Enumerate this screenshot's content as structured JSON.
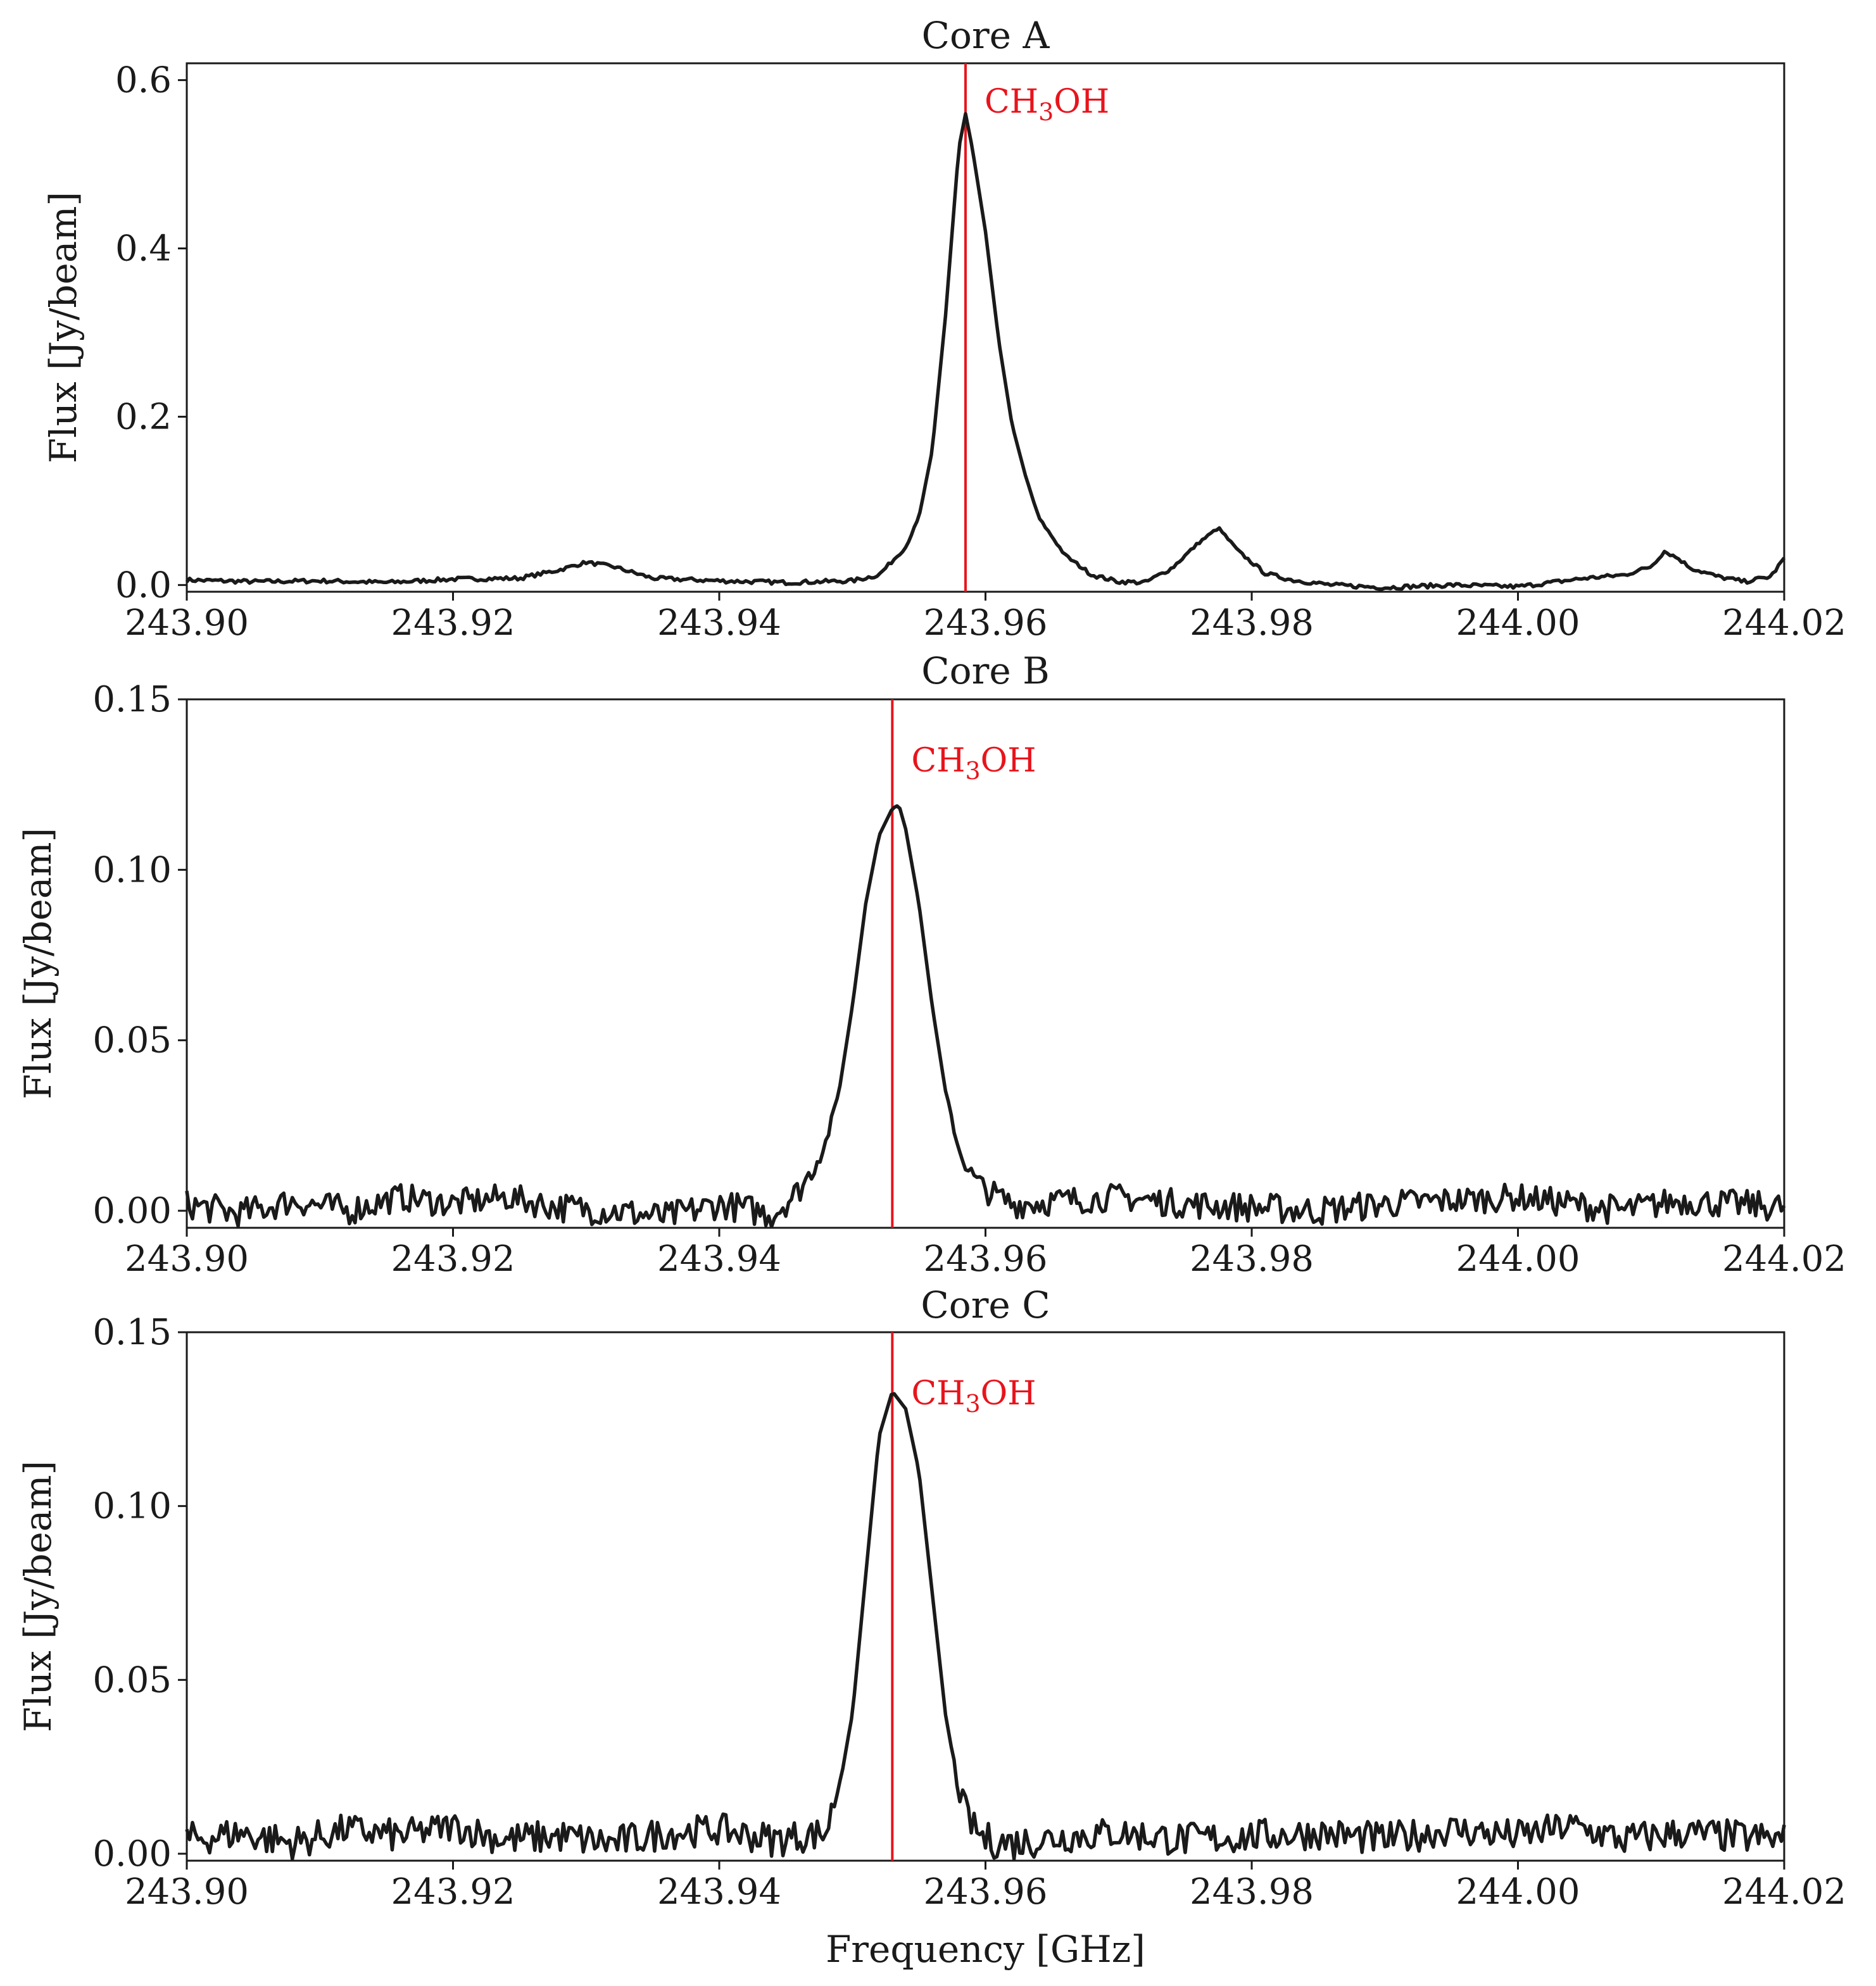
{
  "figure": {
    "xlabel": "Frequency [GHz]",
    "line_color": "#e8141c",
    "trace_color": "#1a1a1a"
  },
  "chart_data": [
    {
      "type": "line",
      "title": "Core A",
      "xlabel": "",
      "ylabel": "Flux [Jy/beam]",
      "xlim": [
        243.9,
        244.02
      ],
      "ylim": [
        -0.008,
        0.62
      ],
      "xticks": [
        "243.90",
        "243.92",
        "243.94",
        "243.96",
        "243.98",
        "244.00",
        "244.02"
      ],
      "yticks": [
        "0.0",
        "0.2",
        "0.4",
        "0.6"
      ],
      "ytick_values": [
        0.0,
        0.2,
        0.4,
        0.6
      ],
      "line_marker": {
        "x": 243.9585,
        "label_main": "CH",
        "label_sub": "3",
        "label_tail": "OH"
      },
      "series": [
        {
          "x": [
            243.9,
            243.905,
            243.91,
            243.915,
            243.92,
            243.925,
            243.928,
            243.93,
            243.932,
            243.935,
            243.94,
            243.945,
            243.95,
            243.952,
            243.954,
            243.955,
            243.956,
            243.957,
            243.958,
            243.9585,
            243.959,
            243.96,
            243.961,
            243.962,
            243.963,
            243.964,
            243.966,
            243.968,
            243.97,
            243.972,
            243.974,
            243.976,
            243.9775,
            243.979,
            243.981,
            243.983,
            243.986,
            243.99,
            243.995,
            244.0,
            244.005,
            244.008,
            244.01,
            244.011,
            244.012,
            244.013,
            244.015,
            244.017,
            244.019,
            244.02
          ],
          "y": [
            0.006,
            0.004,
            0.005,
            0.003,
            0.007,
            0.008,
            0.018,
            0.027,
            0.022,
            0.008,
            0.005,
            0.003,
            0.005,
            0.012,
            0.045,
            0.08,
            0.16,
            0.32,
            0.52,
            0.56,
            0.52,
            0.42,
            0.29,
            0.19,
            0.13,
            0.08,
            0.035,
            0.012,
            0.004,
            0.003,
            0.02,
            0.05,
            0.068,
            0.04,
            0.014,
            0.006,
            0.0,
            -0.003,
            0.0,
            -0.002,
            0.008,
            0.012,
            0.022,
            0.04,
            0.032,
            0.02,
            0.01,
            0.004,
            0.01,
            0.032
          ]
        }
      ]
    },
    {
      "type": "line",
      "title": "Core B",
      "xlabel": "",
      "ylabel": "Flux [Jy/beam]",
      "xlim": [
        243.9,
        244.02
      ],
      "ylim": [
        -0.005,
        0.15
      ],
      "xticks": [
        "243.90",
        "243.92",
        "243.94",
        "243.96",
        "243.98",
        "244.00",
        "244.02"
      ],
      "yticks": [
        "0.00",
        "0.05",
        "0.10",
        "0.15"
      ],
      "ytick_values": [
        0.0,
        0.05,
        0.1,
        0.15
      ],
      "line_marker": {
        "x": 243.953,
        "label_main": "CH",
        "label_sub": "3",
        "label_tail": "OH"
      },
      "series": [
        {
          "x": [
            243.9,
            243.904,
            243.908,
            243.912,
            243.916,
            243.92,
            243.924,
            243.928,
            243.932,
            243.936,
            243.94,
            243.944,
            243.946,
            243.947,
            243.948,
            243.949,
            243.95,
            243.951,
            243.952,
            243.953,
            243.9535,
            243.954,
            243.955,
            243.956,
            243.957,
            243.958,
            243.959,
            243.96,
            243.962,
            243.966,
            243.97,
            243.975,
            243.98,
            243.985,
            243.99,
            243.995,
            244.0,
            244.004,
            244.008,
            244.012,
            244.016,
            244.02
          ],
          "y": [
            0.002,
            -0.001,
            0.003,
            0.0,
            0.004,
            0.002,
            0.004,
            0.001,
            0.0,
            -0.002,
            0.002,
            -0.001,
            0.006,
            0.012,
            0.02,
            0.035,
            0.06,
            0.09,
            0.11,
            0.118,
            0.119,
            0.112,
            0.09,
            0.06,
            0.035,
            0.018,
            0.01,
            0.006,
            0.002,
            0.003,
            0.004,
            0.002,
            0.001,
            0.0,
            0.002,
            0.003,
            0.004,
            0.002,
            0.0,
            0.003,
            0.002,
            0.001
          ]
        }
      ]
    },
    {
      "type": "line",
      "title": "Core C",
      "xlabel": "Frequency [GHz]",
      "ylabel": "Flux [Jy/beam]",
      "xlim": [
        243.9,
        244.02
      ],
      "ylim": [
        -0.002,
        0.15
      ],
      "xticks": [
        "243.90",
        "243.92",
        "243.94",
        "243.96",
        "243.98",
        "244.00",
        "244.02"
      ],
      "yticks": [
        "0.00",
        "0.05",
        "0.10",
        "0.15"
      ],
      "ytick_values": [
        0.0,
        0.05,
        0.1,
        0.15
      ],
      "line_marker": {
        "x": 243.953,
        "label_main": "CH",
        "label_sub": "3",
        "label_tail": "OH"
      },
      "series": [
        {
          "x": [
            243.9,
            243.904,
            243.908,
            243.912,
            243.916,
            243.92,
            243.924,
            243.928,
            243.932,
            243.936,
            243.94,
            243.944,
            243.948,
            243.949,
            243.95,
            243.951,
            243.952,
            243.953,
            243.954,
            243.955,
            243.956,
            243.957,
            243.958,
            243.959,
            243.96,
            243.962,
            243.966,
            243.97,
            243.975,
            243.98,
            243.985,
            243.99,
            243.995,
            244.0,
            244.004,
            244.008,
            244.012,
            244.016,
            244.02
          ],
          "y": [
            0.004,
            0.006,
            0.003,
            0.007,
            0.005,
            0.008,
            0.004,
            0.005,
            0.003,
            0.006,
            0.007,
            0.004,
            0.006,
            0.02,
            0.04,
            0.08,
            0.12,
            0.133,
            0.128,
            0.11,
            0.075,
            0.04,
            0.018,
            0.008,
            0.004,
            0.003,
            0.005,
            0.006,
            0.004,
            0.005,
            0.006,
            0.004,
            0.007,
            0.005,
            0.008,
            0.004,
            0.006,
            0.005,
            0.004
          ]
        }
      ]
    }
  ]
}
